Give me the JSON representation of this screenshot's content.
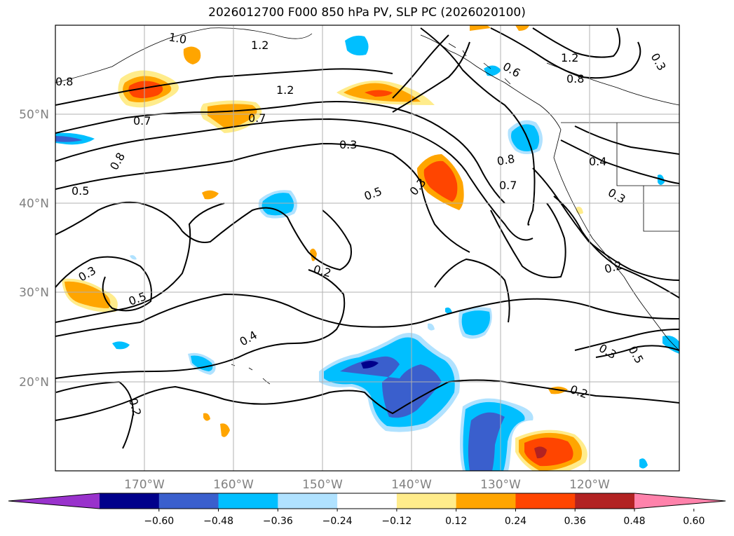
{
  "title": "2026012700 F000 850 hPa PV, SLP PC (2026020100)",
  "lat_labels": [
    "50°N",
    "40°N",
    "30°N",
    "20°N"
  ],
  "lon_labels": [
    "170°W",
    "160°W",
    "150°W",
    "140°W",
    "130°W",
    "120°W"
  ],
  "contour_labels": [
    "1.0",
    "1.2",
    "0.8",
    "1.2",
    "0.7",
    "0.7",
    "0.8",
    "0.5",
    "0.3",
    "0.5",
    "0.3",
    "0.3",
    "0.5",
    "0.2",
    "0.4",
    "0.2",
    "0.3",
    "0.8",
    "0.7",
    "0.4",
    "0.3",
    "0.6",
    "1.2",
    "0.8",
    "0.3",
    "0.5",
    "0.2",
    "0.2"
  ],
  "colorbar": {
    "ticks": [
      "−0.60",
      "−0.48",
      "−0.36",
      "−0.24",
      "−0.12",
      "0.12",
      "0.24",
      "0.36",
      "0.48",
      "0.60"
    ],
    "colors": [
      "#9932cc",
      "#00008b",
      "#3a5fcd",
      "#00bfff",
      "#b0e2ff",
      "#ffffff",
      "#ffec8b",
      "#ffa500",
      "#ff4500",
      "#b22222",
      "#ff82ab"
    ]
  }
}
